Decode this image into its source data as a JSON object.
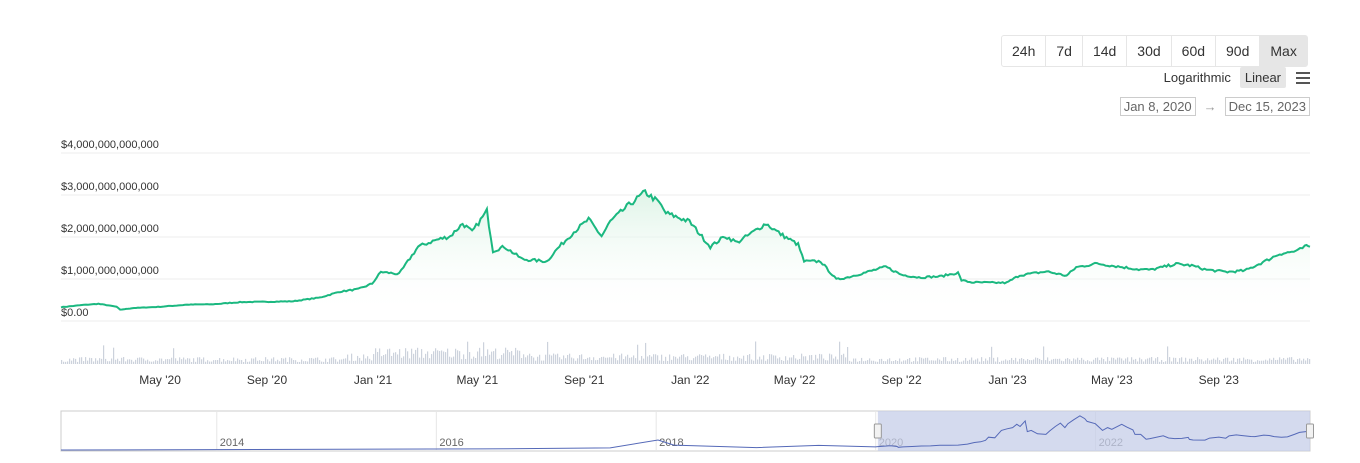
{
  "toolbar": {
    "ranges": [
      "24h",
      "7d",
      "14d",
      "30d",
      "60d",
      "90d",
      "Max"
    ],
    "active_range": "Max",
    "scales": [
      "Logarithmic",
      "Linear"
    ],
    "active_scale": "Linear",
    "date_from": "Jan 8, 2020",
    "date_to": "Dec 15, 2023",
    "date_arrow": "→"
  },
  "colors": {
    "line": "#1bb880",
    "fill_top": "#d9f2e3",
    "volume": "#ccd2dc",
    "navigator_line": "#5569b8",
    "navigator_mask": "#c6cee8"
  },
  "chart_data": {
    "type": "area",
    "title": "",
    "xlabel": "",
    "ylabel": "",
    "y_scale": "linear",
    "ylim": [
      0,
      4000000000000
    ],
    "y_ticks": [
      "$4,000,000,000,000",
      "$3,000,000,000,000",
      "$2,000,000,000,000",
      "$1,000,000,000,000",
      "$0.00"
    ],
    "x_range": [
      "2020-01-08",
      "2023-12-15"
    ],
    "x_ticks": [
      "May '20",
      "Sep '20",
      "Jan '21",
      "May '21",
      "Sep '21",
      "Jan '22",
      "May '22",
      "Sep '22",
      "Jan '23",
      "May '23",
      "Sep '23"
    ],
    "grid": true,
    "legend": "none",
    "series": [
      {
        "x": [
          "2020-01-08",
          "2020-02-01",
          "2020-02-20",
          "2020-03-12",
          "2020-03-16",
          "2020-04-01",
          "2020-05-01",
          "2020-06-01",
          "2020-07-01",
          "2020-08-01",
          "2020-09-03",
          "2020-10-01",
          "2020-11-01",
          "2020-11-24",
          "2020-12-15",
          "2020-12-31",
          "2021-01-10",
          "2021-01-31",
          "2021-02-10",
          "2021-02-22",
          "2021-03-13",
          "2021-03-31",
          "2021-04-14",
          "2021-04-25",
          "2021-05-12",
          "2021-05-19",
          "2021-06-01",
          "2021-06-22",
          "2021-07-20",
          "2021-08-01",
          "2021-08-20",
          "2021-09-06",
          "2021-09-21",
          "2021-10-01",
          "2021-10-20",
          "2021-11-10",
          "2021-11-26",
          "2021-12-04",
          "2021-12-31",
          "2022-01-24",
          "2022-02-10",
          "2022-02-24",
          "2022-03-29",
          "2022-04-15",
          "2022-05-05",
          "2022-05-12",
          "2022-05-31",
          "2022-06-18",
          "2022-07-01",
          "2022-08-14",
          "2022-09-01",
          "2022-09-21",
          "2022-10-15",
          "2022-11-05",
          "2022-11-09",
          "2022-11-21",
          "2022-12-31",
          "2023-01-15",
          "2023-02-15",
          "2023-03-10",
          "2023-03-21",
          "2023-04-14",
          "2023-05-01",
          "2023-06-01",
          "2023-06-15",
          "2023-07-14",
          "2023-08-01",
          "2023-08-18",
          "2023-09-11",
          "2023-10-01",
          "2023-10-24",
          "2023-11-10",
          "2023-12-01",
          "2023-12-09",
          "2023-12-15"
        ],
        "y": [
          210000000000,
          260000000000,
          290000000000,
          220000000000,
          150000000000,
          190000000000,
          220000000000,
          270000000000,
          280000000000,
          330000000000,
          340000000000,
          350000000000,
          440000000000,
          580000000000,
          640000000000,
          770000000000,
          1050000000000,
          1000000000000,
          1300000000000,
          1650000000000,
          1800000000000,
          1900000000000,
          2200000000000,
          2000000000000,
          2500000000000,
          1550000000000,
          1650000000000,
          1350000000000,
          1300000000000,
          1600000000000,
          2000000000000,
          2300000000000,
          1900000000000,
          2250000000000,
          2600000000000,
          2950000000000,
          2700000000000,
          2450000000000,
          2250000000000,
          1650000000000,
          1900000000000,
          1750000000000,
          2200000000000,
          1950000000000,
          1700000000000,
          1300000000000,
          1300000000000,
          870000000000,
          920000000000,
          1170000000000,
          980000000000,
          920000000000,
          940000000000,
          1030000000000,
          850000000000,
          800000000000,
          790000000000,
          970000000000,
          1060000000000,
          960000000000,
          1160000000000,
          1250000000000,
          1200000000000,
          1110000000000,
          1100000000000,
          1240000000000,
          1200000000000,
          1100000000000,
          1050000000000,
          1080000000000,
          1300000000000,
          1480000000000,
          1550000000000,
          1650000000000,
          1650000000000
        ]
      }
    ],
    "navigator": {
      "x_ticks": [
        "2014",
        "2016",
        "2018",
        "2020",
        "2022"
      ],
      "selected_range": [
        "2020-01-08",
        "2023-12-15"
      ]
    }
  }
}
